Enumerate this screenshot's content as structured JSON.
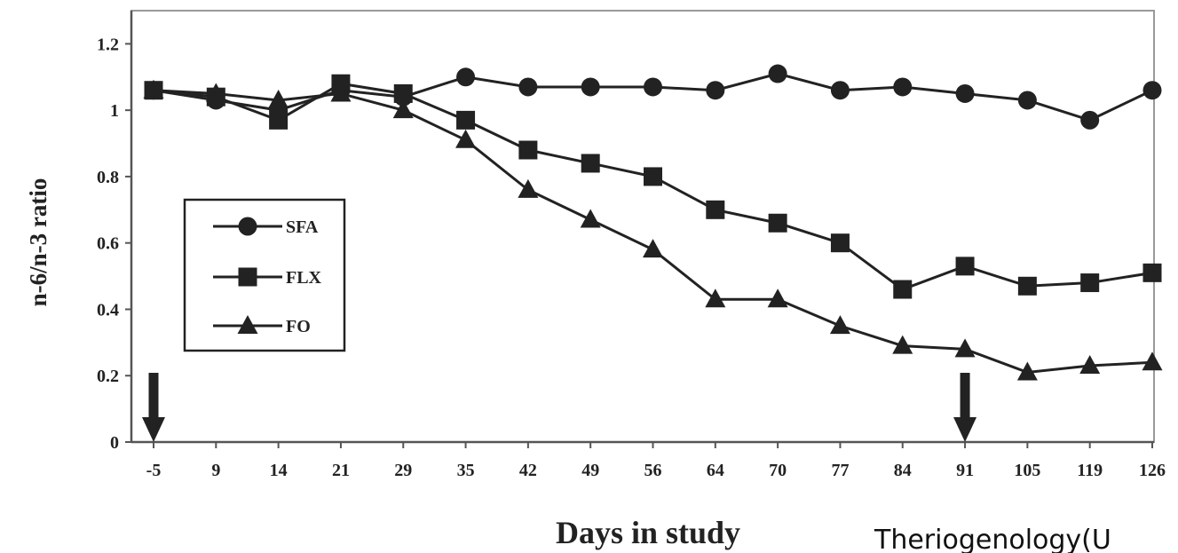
{
  "chart_data": {
    "type": "line",
    "xlabel": "Days in study",
    "ylabel": "n-6/n-3 ratio",
    "categories": [
      "-5",
      "9",
      "14",
      "21",
      "29",
      "35",
      "42",
      "49",
      "56",
      "64",
      "70",
      "77",
      "84",
      "91",
      "105",
      "119",
      "126"
    ],
    "ylim": [
      0,
      1.3
    ],
    "yticks": [
      "0",
      "0.2",
      "0.4",
      "0.6",
      "0.8",
      "1",
      "1.2"
    ],
    "grid": false,
    "legend_position": "middle-left",
    "series": [
      {
        "name": "SFA",
        "marker": "circle",
        "values": [
          1.06,
          1.03,
          1.0,
          1.06,
          1.04,
          1.1,
          1.07,
          1.07,
          1.07,
          1.06,
          1.11,
          1.06,
          1.07,
          1.05,
          1.03,
          0.97,
          1.06
        ]
      },
      {
        "name": "FLX",
        "marker": "square",
        "values": [
          1.06,
          1.04,
          0.97,
          1.08,
          1.05,
          0.97,
          0.88,
          0.84,
          0.8,
          0.7,
          0.66,
          0.6,
          0.46,
          0.53,
          0.47,
          0.48,
          0.51
        ]
      },
      {
        "name": "FO",
        "marker": "triangle",
        "values": [
          1.06,
          1.05,
          1.03,
          1.05,
          1.0,
          0.91,
          0.76,
          0.67,
          0.58,
          0.43,
          0.43,
          0.35,
          0.29,
          0.28,
          0.21,
          0.23,
          0.24
        ]
      }
    ],
    "annotations": [
      {
        "type": "down-arrow",
        "category": "-5"
      },
      {
        "type": "down-arrow",
        "category": "91"
      }
    ],
    "colors": {
      "line": "#222222",
      "frame": "#999999"
    }
  },
  "credit": "Theriogenology(U"
}
